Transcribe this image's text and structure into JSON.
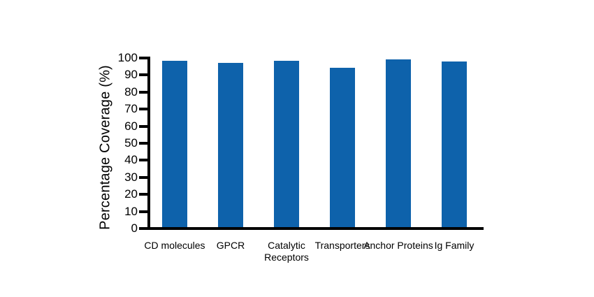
{
  "chart_data": {
    "type": "bar",
    "title": "",
    "ylabel": "Percentage Coverage (%)",
    "xlabel": "",
    "categories": [
      "CD molecules",
      "GPCR",
      "Catalytic Receptors",
      "Transporters",
      "Anchor Proteins",
      "Ig Family"
    ],
    "values": [
      97.5,
      96.5,
      97.5,
      93.5,
      98.5,
      97
    ],
    "ylim": [
      0,
      100
    ],
    "yticks": [
      0,
      10,
      20,
      30,
      40,
      50,
      60,
      70,
      80,
      90,
      100
    ],
    "grid": false,
    "legend": null,
    "bar_color": "#0e62ab",
    "axis_color": "#000000",
    "background_color": "#ffffff"
  }
}
